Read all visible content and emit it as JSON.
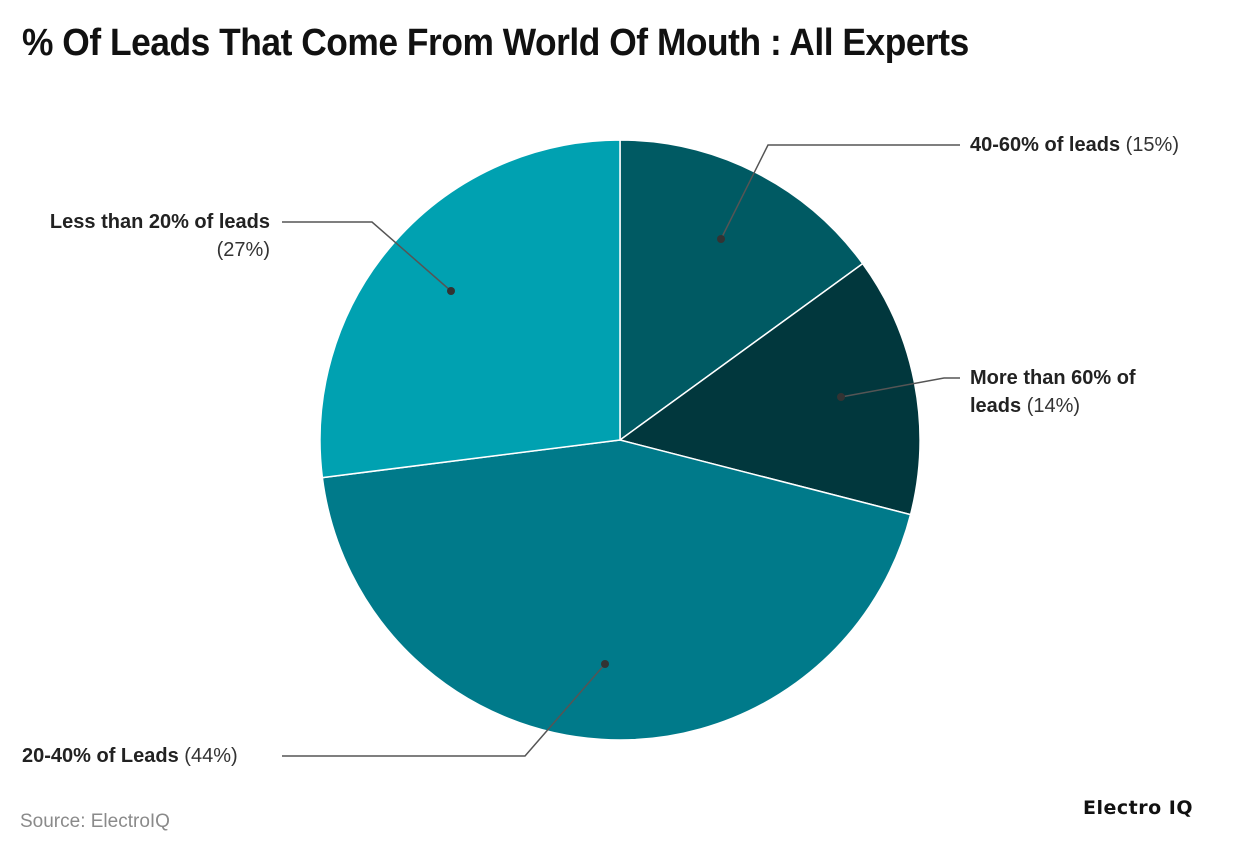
{
  "title": "% Of Leads That Come From World Of Mouth : All Experts",
  "source": "Source: ElectroIQ",
  "brand": "Electro IQ",
  "labels": {
    "s0": {
      "name": "40-60% of leads",
      "pct": "(15%)"
    },
    "s1": {
      "name_line1": "More than 60% of",
      "name_line2": "leads",
      "pct": "(14%)"
    },
    "s2": {
      "name": "20-40% of Leads",
      "pct": "(44%)"
    },
    "s3": {
      "name": "Less than 20% of leads",
      "pct": "(27%)"
    }
  },
  "chart_data": {
    "type": "pie",
    "title": "% Of Leads That Come From World Of Mouth : All Experts",
    "categories": [
      "40-60% of leads",
      "More than 60% of leads",
      "20-40% of Leads",
      "Less than 20% of leads"
    ],
    "values": [
      15,
      14,
      44,
      27
    ],
    "unit": "%",
    "colors": [
      "#005A63",
      "#01373D",
      "#007A8A",
      "#00A1B1"
    ],
    "start_angle": "12 o'clock",
    "direction": "clockwise",
    "legend": "none (callout labels)",
    "source": "ElectroIQ"
  }
}
